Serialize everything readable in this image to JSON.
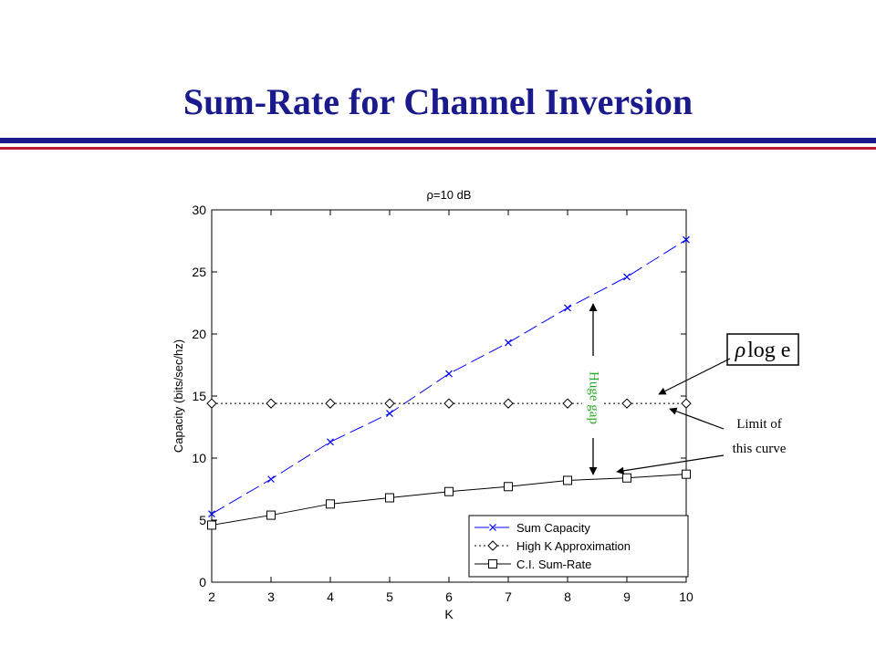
{
  "slide": {
    "title": "Sum-Rate for Channel Inversion",
    "title_color": "#1a1a8c",
    "rule_blue": "#1a1a8c",
    "rule_red": "#b81c2e"
  },
  "annotations": {
    "gap_text": "Huge gap",
    "gap_color": "#22aa22",
    "formula_rho": "ρ",
    "formula_rest": "log e",
    "limit_line1": "Limit of",
    "limit_line2": "this curve"
  },
  "chart_data": {
    "type": "line",
    "title": "ρ=10 dB",
    "xlabel": "K",
    "ylabel": "Capacity (bits/sec/hz)",
    "xlim": [
      2,
      10
    ],
    "ylim": [
      0,
      30
    ],
    "xticks": [
      2,
      3,
      4,
      5,
      6,
      7,
      8,
      9,
      10
    ],
    "yticks": [
      0,
      5,
      10,
      15,
      20,
      25,
      30
    ],
    "grid": false,
    "legend_position": "lower-right",
    "x": [
      2,
      3,
      4,
      5,
      6,
      7,
      8,
      9,
      10
    ],
    "series": [
      {
        "name": "Sum Capacity",
        "values": [
          5.5,
          8.3,
          11.3,
          13.6,
          16.8,
          19.3,
          22.1,
          24.6,
          27.6
        ],
        "color": "#0000ff",
        "marker": "x",
        "dash": "dash"
      },
      {
        "name": "High K Approximation",
        "values": [
          14.4,
          14.4,
          14.4,
          14.4,
          14.4,
          14.4,
          14.4,
          14.4,
          14.4
        ],
        "color": "#000000",
        "marker": "diamond",
        "dash": "dotted"
      },
      {
        "name": "C.I. Sum-Rate",
        "values": [
          4.6,
          5.4,
          6.3,
          6.8,
          7.3,
          7.7,
          8.2,
          8.4,
          8.7
        ],
        "color": "#000000",
        "marker": "square",
        "dash": "solid"
      }
    ]
  }
}
